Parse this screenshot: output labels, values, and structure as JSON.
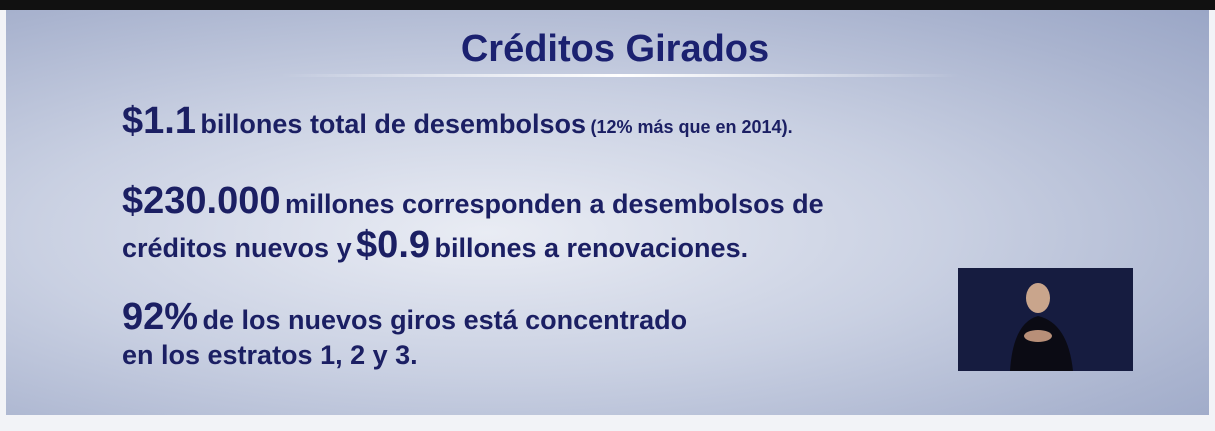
{
  "title": "Créditos Girados",
  "items": [
    {
      "parts": [
        "$1.1",
        "billones total de desembolsos",
        "(12% más que en 2014)."
      ]
    },
    {
      "parts": [
        "$230.000",
        "millones corresponden a desembolsos de",
        "créditos nuevos y",
        "$0.9",
        "billones a renovaciones."
      ]
    },
    {
      "parts": [
        "92%",
        "de los nuevos giros está concentrado",
        "en los estratos 1, 2 y 3."
      ]
    }
  ]
}
